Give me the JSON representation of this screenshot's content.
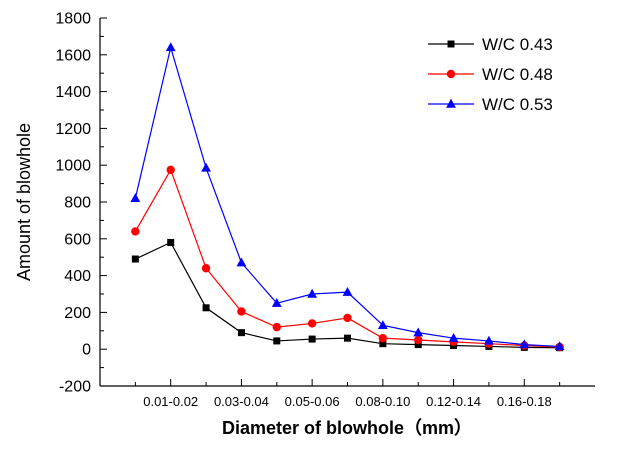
{
  "chart_data": {
    "type": "line",
    "title": "",
    "xlabel": "Diameter of blowhole（mm）",
    "ylabel": "Amount of blowhole",
    "ylim": [
      -200,
      1800
    ],
    "y_tick_step": 200,
    "grid": false,
    "legend_position": "top-right",
    "categories": [
      "",
      "0.01-0.02",
      "",
      "0.03-0.04",
      "",
      "0.05-0.06",
      "",
      "0.08-0.10",
      "",
      "0.12-0.14",
      "",
      "0.16-0.18",
      ""
    ],
    "x_tick_labels": [
      "0.01-0.02",
      "0.03-0.04",
      "0.05-0.06",
      "0.08-0.10",
      "0.12-0.14",
      "0.16-0.18"
    ],
    "series": [
      {
        "name": "W/C 0.43",
        "marker": "square",
        "color": "#000000",
        "values": [
          490,
          580,
          225,
          90,
          45,
          55,
          60,
          30,
          25,
          20,
          15,
          10,
          8
        ]
      },
      {
        "name": "W/C 0.48",
        "marker": "circle",
        "color": "#ff0000",
        "values": [
          640,
          975,
          440,
          205,
          120,
          140,
          170,
          60,
          50,
          40,
          30,
          20,
          12
        ]
      },
      {
        "name": "W/C 0.53",
        "marker": "triangle",
        "color": "#0000ff",
        "values": [
          820,
          1640,
          985,
          470,
          250,
          300,
          310,
          130,
          90,
          60,
          45,
          25,
          15
        ]
      }
    ]
  }
}
